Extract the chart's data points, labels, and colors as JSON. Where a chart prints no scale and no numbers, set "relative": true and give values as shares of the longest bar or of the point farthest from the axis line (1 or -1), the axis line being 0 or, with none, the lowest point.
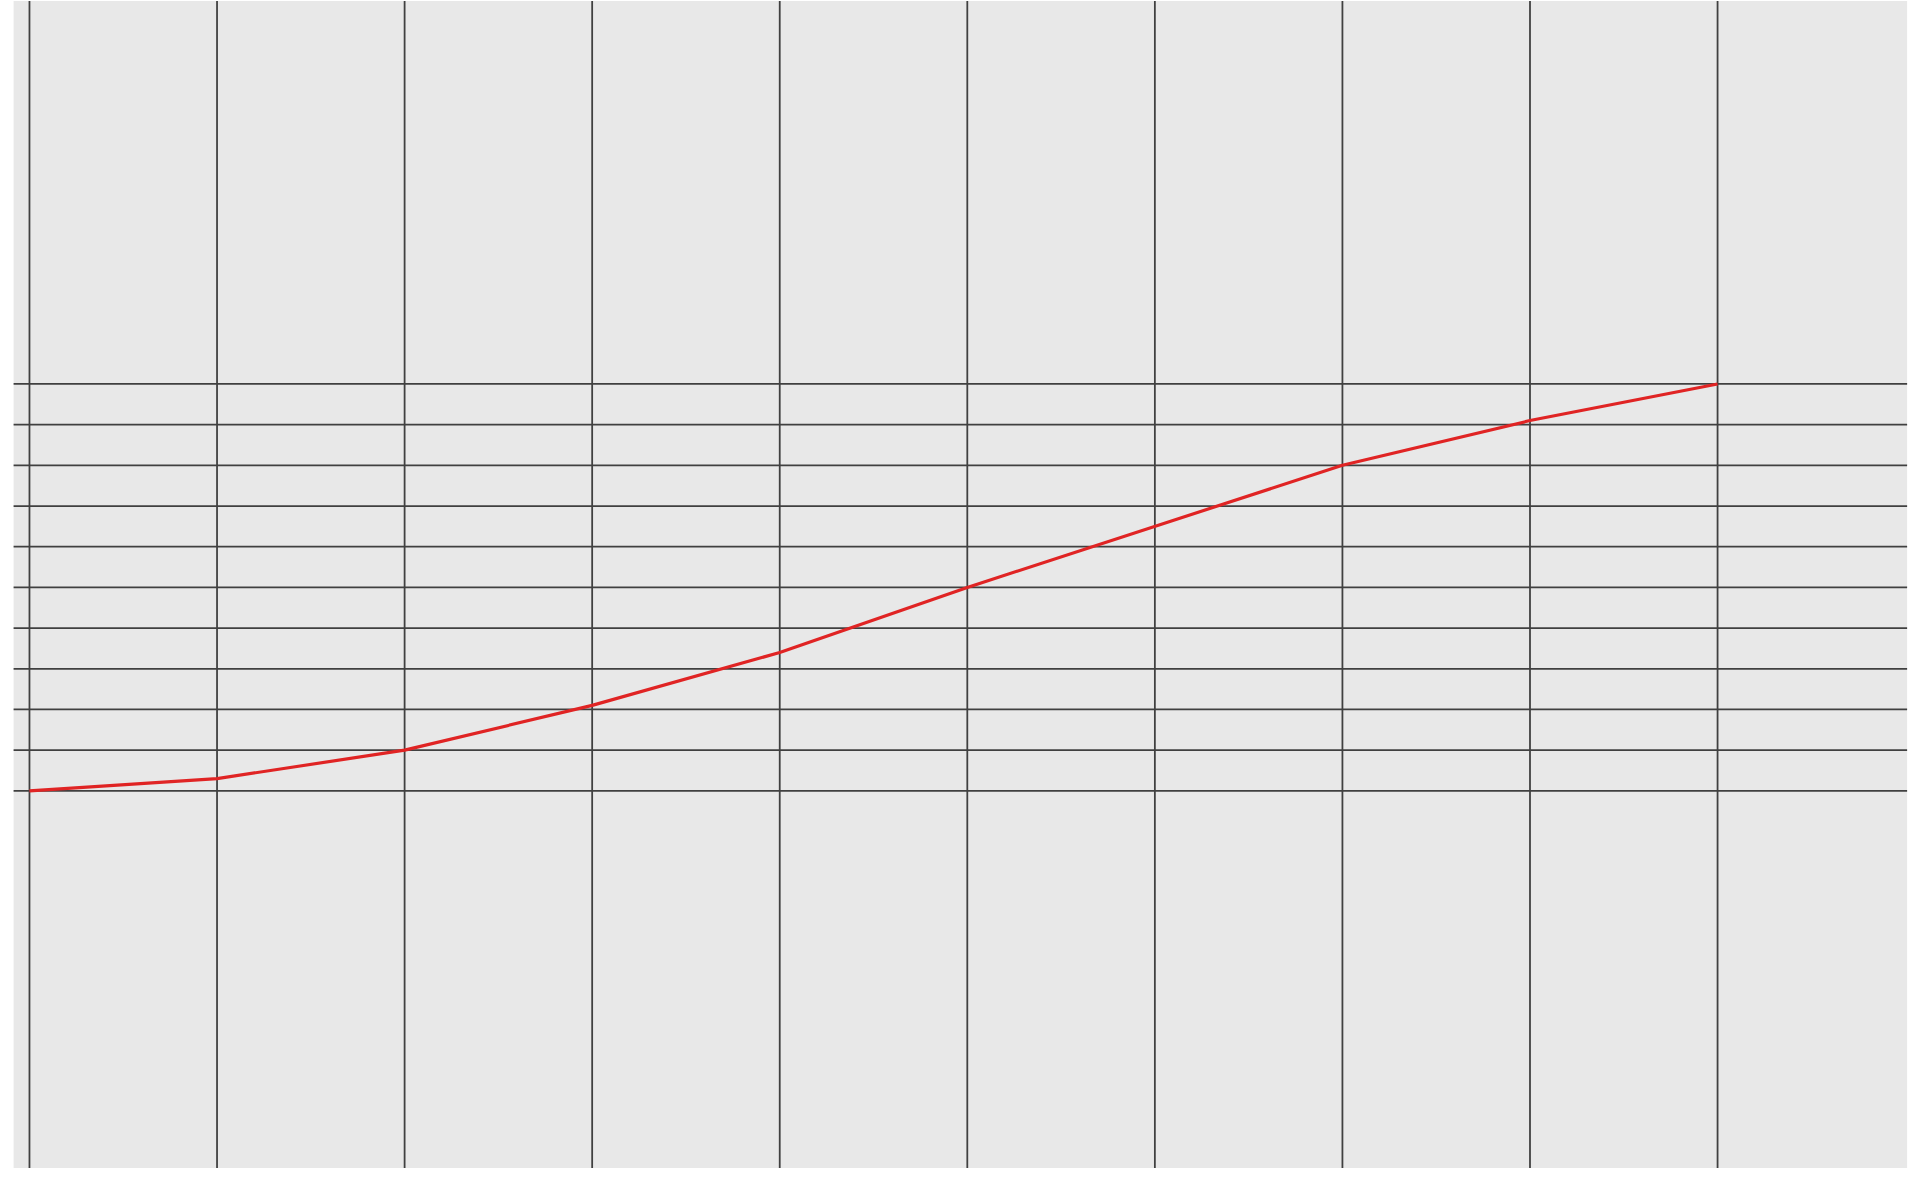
{
  "chart_data": {
    "type": "line",
    "categories": [
      null,
      null,
      null,
      null,
      null,
      null,
      null,
      null,
      null,
      null
    ],
    "series": [
      {
        "color": "#e02424",
        "values": [
          0,
          0.03,
          0.1,
          0.21,
          0.34,
          0.5,
          0.65,
          0.8,
          0.91,
          1
        ]
      }
    ],
    "relative": true,
    "grid": true
  }
}
